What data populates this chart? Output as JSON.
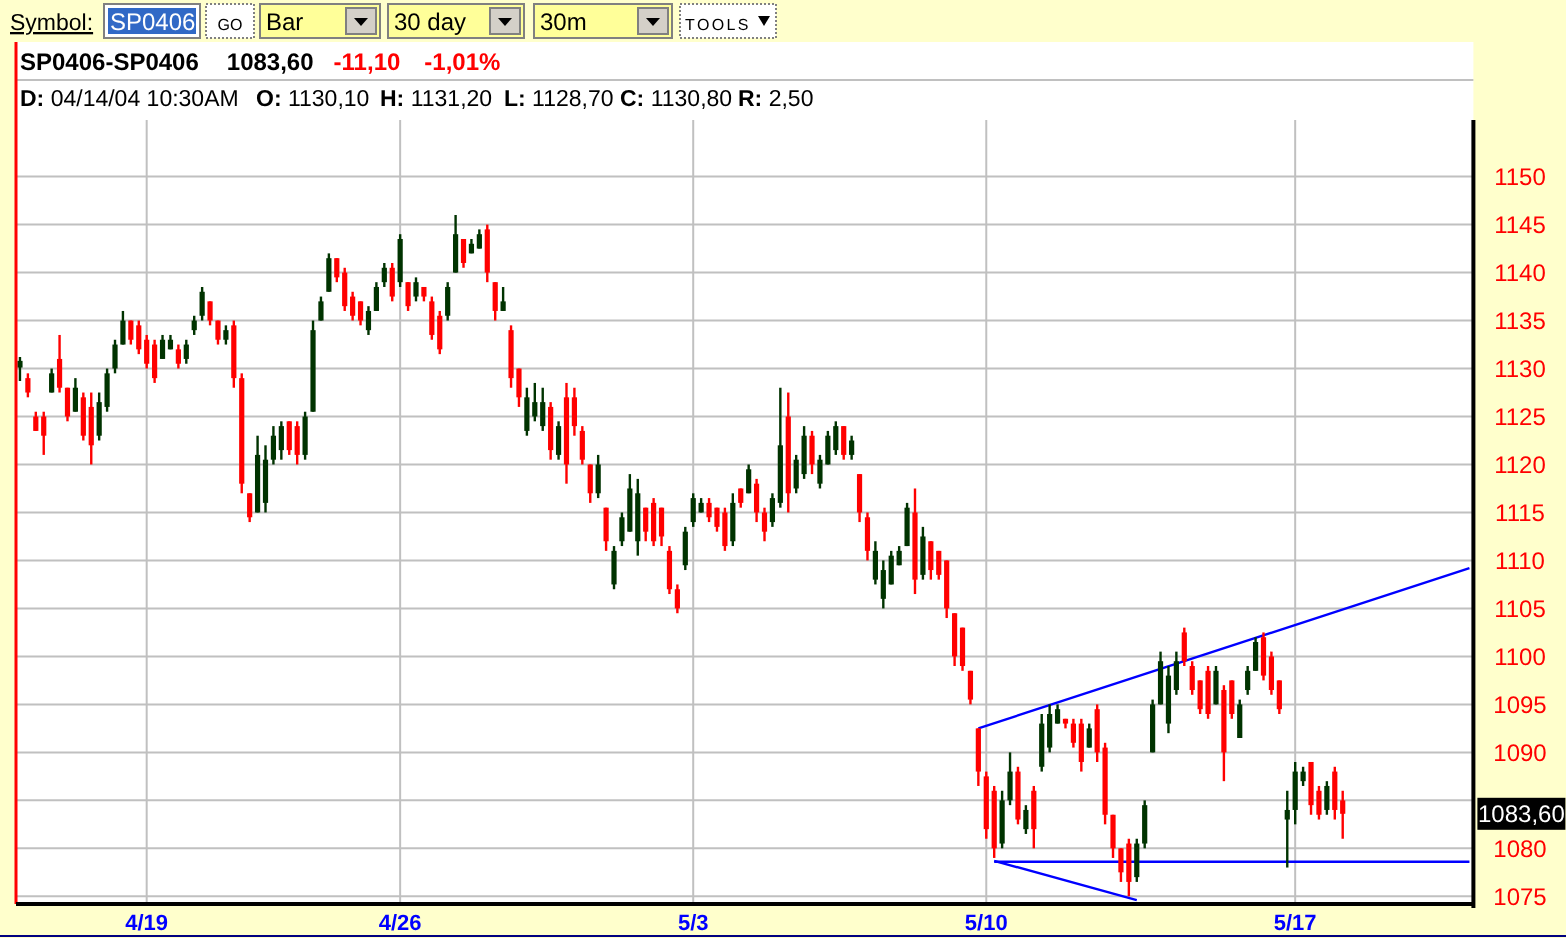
{
  "chart_data": {
    "type": "candlestick",
    "title": "SP0406-SP0406",
    "annotations": [
      "Symbol:",
      "SP0406",
      "GO",
      "Bar",
      "30 day",
      "30m",
      "TOOLS",
      "1083,60",
      "-11,10",
      "-1,01%",
      "D: 04/14/04 10:30AM",
      "O: 1130,10",
      "H: 1131,20",
      "L: 1128,70",
      "C: 1130,80",
      "R: 2,50",
      {
        "text": "1083,60",
        "y": 1083.6
      }
    ],
    "categories": [
      null,
      null,
      null,
      null,
      null,
      null,
      null,
      null,
      null,
      null,
      null,
      null,
      null,
      null,
      null,
      null,
      "4/19",
      null,
      null,
      null,
      null,
      null,
      null,
      null,
      null,
      null,
      null,
      null,
      null,
      null,
      null,
      null,
      null,
      null,
      null,
      null,
      null,
      null,
      null,
      null,
      null,
      null,
      null,
      null,
      null,
      null,
      null,
      null,
      "4/26",
      null,
      null,
      null,
      null,
      null,
      null,
      null,
      null,
      null,
      null,
      null,
      null,
      null,
      null,
      null,
      null,
      null,
      null,
      null,
      null,
      null,
      null,
      null,
      null,
      null,
      null,
      null,
      null,
      null,
      null,
      null,
      null,
      null,
      null,
      null,
      null,
      "5/3",
      null,
      null,
      null,
      null,
      null,
      null,
      null,
      null,
      null,
      null,
      null,
      null,
      null,
      null,
      null,
      null,
      null,
      null,
      null,
      null,
      null,
      null,
      null,
      null,
      null,
      null,
      null,
      null,
      null,
      null,
      null,
      null,
      null,
      null,
      null,
      null,
      "5/10",
      null,
      null,
      null,
      null,
      null,
      null,
      null,
      null,
      null,
      null,
      null,
      null,
      null,
      null,
      null,
      null,
      null,
      null,
      null,
      null,
      null,
      null,
      null,
      null,
      null,
      null,
      null,
      null,
      null,
      null,
      null,
      null,
      null,
      null,
      null,
      null,
      null,
      null,
      "5/17",
      null,
      null,
      null,
      null,
      null,
      null,
      null,
      null,
      null,
      null,
      null,
      null,
      null,
      null,
      null,
      null,
      null,
      null,
      null,
      null,
      null,
      null
    ],
    "ylim": [
      1074.2,
      1155.9
    ],
    "yticks": [
      1075,
      1080,
      {
        "value": 1085,
        "label": null
      },
      1090,
      1095,
      1100,
      1105,
      1110,
      1115,
      1120,
      1125,
      1130,
      1135,
      1140,
      1145,
      1150
    ],
    "grid": true,
    "ohlc": [
      [
        1130.1,
        1131.2,
        1128.7,
        1130.8
      ],
      [
        1129,
        1129.5,
        1127,
        1127.5
      ],
      [
        1125,
        1125.5,
        1123.5,
        1123.5
      ],
      [
        1125,
        1125.5,
        1121,
        1123
      ],
      [
        1127.5,
        1130,
        1127.5,
        1129.5
      ],
      [
        1131,
        1133.5,
        1127.5,
        1128
      ],
      [
        1128,
        1128,
        1124.5,
        1125
      ],
      [
        1125.5,
        1129,
        1125.5,
        1128
      ],
      [
        1127,
        1127.5,
        1122.5,
        1123
      ],
      [
        1126,
        1127.5,
        1120,
        1122
      ],
      [
        1123,
        1127.5,
        1122.5,
        1126.5
      ],
      [
        1126,
        1130,
        1125.5,
        1129.5
      ],
      [
        1130,
        1133,
        1129.5,
        1132.5
      ],
      [
        1132.5,
        1136,
        1132.5,
        1135
      ],
      [
        1135,
        1135,
        1132.5,
        1133
      ],
      [
        1134.5,
        1135,
        1131.5,
        1132
      ],
      [
        1133,
        1133.5,
        1130,
        1130.5
      ],
      [
        1132.5,
        1133,
        1128.5,
        1129
      ],
      [
        1131,
        1133.5,
        1131,
        1133
      ],
      [
        1132,
        1133.5,
        1132,
        1133
      ],
      [
        1132,
        1132.5,
        1130,
        1130.5
      ],
      [
        1131,
        1133,
        1130.5,
        1132.5
      ],
      [
        1134,
        1135.5,
        1133.5,
        1135
      ],
      [
        1135.5,
        1138.5,
        1135,
        1138
      ],
      [
        1137,
        1137,
        1134.5,
        1135
      ],
      [
        1135,
        1135,
        1132.5,
        1133
      ],
      [
        1133,
        1134.5,
        1132.5,
        1134
      ],
      [
        1134.5,
        1135,
        1128,
        1129
      ],
      [
        1129,
        1129.5,
        1117,
        1118
      ],
      [
        1117,
        1117,
        1114,
        1114.5
      ],
      [
        1115,
        1123,
        1115,
        1121
      ],
      [
        1116,
        1122,
        1115,
        1120.5
      ],
      [
        1120.5,
        1124,
        1120,
        1123
      ],
      [
        1121.5,
        1124.5,
        1120.5,
        1124
      ],
      [
        1124.5,
        1124.5,
        1121,
        1121.5
      ],
      [
        1124,
        1124.5,
        1120,
        1121
      ],
      [
        1121,
        1125.5,
        1120.5,
        1125
      ],
      [
        1125.5,
        1135,
        1125.5,
        1134
      ],
      [
        1135,
        1137.5,
        1135,
        1137
      ],
      [
        1138,
        1142,
        1138,
        1141.5
      ],
      [
        1141.5,
        1141.5,
        1139,
        1139.5
      ],
      [
        1140,
        1140.5,
        1136,
        1136.5
      ],
      [
        1137.5,
        1138,
        1135,
        1135.5
      ],
      [
        1137,
        1137,
        1134.5,
        1135
      ],
      [
        1134,
        1136.5,
        1133.5,
        1136
      ],
      [
        1136,
        1139,
        1136,
        1138.5
      ],
      [
        1139,
        1141,
        1138.5,
        1140.5
      ],
      [
        1140.5,
        1141,
        1137,
        1137.5
      ],
      [
        1139,
        1144,
        1138.5,
        1143.5
      ],
      [
        1139,
        1139,
        1136,
        1136.5
      ],
      [
        1137.5,
        1139.5,
        1137,
        1139
      ],
      [
        1138.5,
        1138.5,
        1137,
        1137.5
      ],
      [
        1137,
        1137.5,
        1133,
        1133.5
      ],
      [
        1135.5,
        1136,
        1131.5,
        1132
      ],
      [
        1135.5,
        1139,
        1135,
        1138.5
      ],
      [
        1140,
        1146,
        1140,
        1144
      ],
      [
        1143.5,
        1143.5,
        1140.5,
        1141
      ],
      [
        1142,
        1143.5,
        1142,
        1143
      ],
      [
        1142.5,
        1144.5,
        1142.5,
        1144
      ],
      [
        1144.5,
        1145,
        1139,
        1140
      ],
      [
        1139,
        1139,
        1135,
        1136
      ],
      [
        1136,
        1138.5,
        1136,
        1137
      ],
      [
        1134,
        1134.5,
        1128,
        1129
      ],
      [
        1130,
        1130,
        1126,
        1127
      ],
      [
        1123.5,
        1128,
        1123,
        1127
      ],
      [
        1125,
        1128.5,
        1124.5,
        1126.5
      ],
      [
        1124,
        1128,
        1123.5,
        1126.5
      ],
      [
        1126,
        1126.5,
        1120.5,
        1121.5
      ],
      [
        1121,
        1124.5,
        1120.5,
        1124
      ],
      [
        1127,
        1128.5,
        1118,
        1120
      ],
      [
        1127,
        1128,
        1123,
        1124
      ],
      [
        1123.5,
        1124,
        1120,
        1120.5
      ],
      [
        1120,
        1120,
        1116,
        1117
      ],
      [
        1117,
        1121,
        1116.5,
        1120
      ],
      [
        1115.5,
        1115.5,
        1111,
        1112
      ],
      [
        1107.5,
        1111.5,
        1107,
        1111
      ],
      [
        1112,
        1115,
        1111.5,
        1114.5
      ],
      [
        1113,
        1119,
        1113,
        1117.5
      ],
      [
        1112,
        1118.5,
        1110.5,
        1117
      ],
      [
        1115.5,
        1115.5,
        1112,
        1113
      ],
      [
        1116,
        1116.5,
        1111.5,
        1112
      ],
      [
        1115.5,
        1115.5,
        1111.5,
        1112.5
      ],
      [
        1111,
        1111.5,
        1106.5,
        1107
      ],
      [
        1107,
        1107.5,
        1104.5,
        1105
      ],
      [
        1109.5,
        1113.5,
        1109,
        1113
      ],
      [
        1114,
        1117,
        1113.5,
        1116.5
      ],
      [
        1115,
        1116.5,
        1115,
        1116
      ],
      [
        1116,
        1116.5,
        1114,
        1114.5
      ],
      [
        1115.5,
        1115.5,
        1113,
        1113.5
      ],
      [
        1115,
        1115.5,
        1111,
        1111.5
      ],
      [
        1112,
        1117,
        1111.5,
        1116
      ],
      [
        1117.5,
        1117.5,
        1115.5,
        1116
      ],
      [
        1117,
        1120,
        1117,
        1119.5
      ],
      [
        1118,
        1118.5,
        1114,
        1115
      ],
      [
        1115,
        1115.5,
        1112,
        1113
      ],
      [
        1114,
        1117,
        1113.5,
        1116.5
      ],
      [
        1116,
        1128,
        1115.5,
        1122
      ],
      [
        1125,
        1127.5,
        1115,
        1117
      ],
      [
        1117.5,
        1121,
        1117,
        1120.5
      ],
      [
        1119,
        1124,
        1118.5,
        1123
      ],
      [
        1123,
        1123.5,
        1119,
        1120
      ],
      [
        1118,
        1121,
        1117.5,
        1120.5
      ],
      [
        1120,
        1123.5,
        1120,
        1123
      ],
      [
        1121.5,
        1124.5,
        1121,
        1124
      ],
      [
        1124,
        1124,
        1120.5,
        1121
      ],
      [
        1121,
        1123,
        1120.5,
        1122.5
      ],
      [
        1119,
        1119,
        1114,
        1115
      ],
      [
        1114.5,
        1115,
        1110,
        1111
      ],
      [
        1108,
        1112,
        1107.5,
        1111
      ],
      [
        1106,
        1110,
        1105,
        1109
      ],
      [
        1107.5,
        1111,
        1107.5,
        1110.5
      ],
      [
        1109.5,
        1111.5,
        1109.5,
        1111
      ],
      [
        1111.5,
        1116,
        1111.5,
        1115.5
      ],
      [
        1115,
        1117.5,
        1106.5,
        1108
      ],
      [
        1108.5,
        1113.5,
        1108,
        1112.5
      ],
      [
        1112,
        1112,
        1108,
        1109
      ],
      [
        1111,
        1111,
        1108,
        1108.5
      ],
      [
        1110,
        1110,
        1104,
        1105
      ],
      [
        1104.5,
        1104.5,
        1099,
        1100
      ],
      [
        1103,
        1103,
        1098.5,
        1099
      ],
      [
        1098.5,
        1098.5,
        1095,
        1095.5
      ],
      [
        1092.5,
        1092.5,
        1086.5,
        1088
      ],
      [
        1087.5,
        1088,
        1081,
        1082
      ],
      [
        1086,
        1086.5,
        1079,
        1080
      ],
      [
        1080.5,
        1086,
        1080,
        1085
      ],
      [
        1085,
        1090,
        1084.5,
        1088
      ],
      [
        1088,
        1088.5,
        1082.5,
        1083
      ],
      [
        1082,
        1084.5,
        1081.5,
        1084
      ],
      [
        1086,
        1086.5,
        1080,
        1082
      ],
      [
        1088.5,
        1094,
        1088,
        1093
      ],
      [
        1090.5,
        1095,
        1090,
        1094
      ],
      [
        1093,
        1095,
        1093,
        1094.5
      ],
      [
        1093.5,
        1093.5,
        1092.5,
        1093
      ],
      [
        1093,
        1093.5,
        1090.5,
        1091
      ],
      [
        1093,
        1093.5,
        1088,
        1089
      ],
      [
        1090.5,
        1093,
        1090.5,
        1092.5
      ],
      [
        1094.5,
        1095,
        1089,
        1090
      ],
      [
        1090.5,
        1091,
        1082.5,
        1083.5
      ],
      [
        1083.5,
        1083.5,
        1079,
        1080
      ],
      [
        1080,
        1080,
        1076.5,
        1077.5
      ],
      [
        1080.5,
        1081,
        1075,
        1076.5
      ],
      [
        1077,
        1081,
        1076.5,
        1080.5
      ],
      [
        1080.5,
        1085,
        1080,
        1084.5
      ],
      [
        1090,
        1095.5,
        1090,
        1095
      ],
      [
        1095,
        1100.5,
        1095,
        1099.5
      ],
      [
        1093,
        1099,
        1092,
        1098
      ],
      [
        1096.5,
        1100.5,
        1096,
        1099.5
      ],
      [
        1102.5,
        1103,
        1099,
        1099.5
      ],
      [
        1099,
        1099.5,
        1096,
        1096.5
      ],
      [
        1097.5,
        1097.5,
        1094,
        1094.5
      ],
      [
        1098.5,
        1099,
        1093.5,
        1094
      ],
      [
        1095,
        1099,
        1095,
        1098.5
      ],
      [
        1096.5,
        1097,
        1087,
        1090
      ],
      [
        1097.5,
        1097.5,
        1093.5,
        1094
      ],
      [
        1091.5,
        1095.5,
        1091.5,
        1095
      ],
      [
        1096.5,
        1099,
        1096,
        1098.5
      ],
      [
        1098.5,
        1102,
        1098.5,
        1101.5
      ],
      [
        1102,
        1102.5,
        1097.5,
        1098
      ],
      [
        1100,
        1100.5,
        1096,
        1096.5
      ],
      [
        1097.5,
        1097.5,
        1094,
        1094.5
      ],
      [
        1083,
        1086,
        1078,
        1084
      ],
      [
        1084,
        1089,
        1082.5,
        1088
      ],
      [
        1087,
        1088.5,
        1086.5,
        1088
      ],
      [
        1089,
        1089,
        1083.5,
        1084.5
      ],
      [
        1086,
        1086.5,
        1083,
        1083.5
      ],
      [
        1084,
        1087,
        1083.5,
        1086.5
      ],
      [
        1088,
        1088.5,
        1083,
        1084
      ],
      [
        1085,
        1086,
        1081,
        1083.6
      ],
      null,
      null,
      null,
      null,
      null,
      null,
      null,
      null,
      null,
      null,
      null,
      null,
      null,
      null,
      null,
      null
    ],
    "colors": [
      "#003300",
      "#ff0000",
      "#ff0000",
      "#ff0000",
      "#003300",
      "#ff0000",
      "#ff0000",
      "#003300",
      "#ff0000",
      "#ff0000",
      "#003300",
      "#003300",
      "#003300",
      "#003300",
      "#ff0000",
      "#ff0000",
      "#ff0000",
      "#ff0000",
      "#003300",
      "#003300",
      "#ff0000",
      "#003300",
      "#003300",
      "#003300",
      "#ff0000",
      "#ff0000",
      "#003300",
      "#ff0000",
      "#ff0000",
      "#ff0000",
      "#003300",
      "#003300",
      "#003300",
      "#003300",
      "#ff0000",
      "#ff0000",
      "#003300",
      "#003300",
      "#003300",
      "#003300",
      "#ff0000",
      "#ff0000",
      "#ff0000",
      "#ff0000",
      "#003300",
      "#003300",
      "#003300",
      "#ff0000",
      "#003300",
      "#ff0000",
      "#003300",
      "#ff0000",
      "#ff0000",
      "#ff0000",
      "#003300",
      "#003300",
      "#ff0000",
      "#003300",
      "#003300",
      "#ff0000",
      "#ff0000",
      "#003300",
      "#ff0000",
      "#ff0000",
      "#003300",
      "#003300",
      "#003300",
      "#ff0000",
      "#003300",
      "#ff0000",
      "#ff0000",
      "#ff0000",
      "#ff0000",
      "#003300",
      "#ff0000",
      "#003300",
      "#003300",
      "#003300",
      "#003300",
      "#ff0000",
      "#ff0000",
      "#ff0000",
      "#ff0000",
      "#ff0000",
      "#003300",
      "#003300",
      "#003300",
      "#ff0000",
      "#ff0000",
      "#ff0000",
      "#003300",
      "#ff0000",
      "#003300",
      "#ff0000",
      "#ff0000",
      "#003300",
      "#003300",
      "#ff0000",
      "#003300",
      "#003300",
      "#ff0000",
      "#003300",
      "#003300",
      "#003300",
      "#ff0000",
      "#003300",
      "#ff0000",
      "#ff0000",
      "#003300",
      "#003300",
      "#003300",
      "#003300",
      "#003300",
      "#ff0000",
      "#003300",
      "#ff0000",
      "#ff0000",
      "#ff0000",
      "#ff0000",
      "#ff0000",
      "#ff0000",
      "#ff0000",
      "#ff0000",
      "#ff0000",
      "#003300",
      "#003300",
      "#ff0000",
      "#003300",
      "#ff0000",
      "#003300",
      "#003300",
      "#003300",
      "#ff0000",
      "#ff0000",
      "#ff0000",
      "#003300",
      "#ff0000",
      "#ff0000",
      "#ff0000",
      "#ff0000",
      "#ff0000",
      "#003300",
      "#003300",
      "#003300",
      "#003300",
      "#003300",
      "#003300",
      "#ff0000",
      "#ff0000",
      "#ff0000",
      "#ff0000",
      "#003300",
      "#ff0000",
      "#ff0000",
      "#003300",
      "#003300",
      "#003300",
      "#ff0000",
      "#ff0000",
      "#ff0000",
      "#003300",
      "#003300",
      "#003300",
      "#ff0000",
      "#ff0000",
      "#003300",
      "#ff0000",
      "#ff0000",
      null,
      null,
      null,
      null,
      null,
      null,
      null,
      null,
      null,
      null,
      null,
      null,
      null,
      null,
      null,
      null
    ],
    "series": [
      {
        "type": "line",
        "color": "#0000ff",
        "values": [
          null,
          null,
          null,
          null,
          null,
          null,
          null,
          null,
          null,
          null,
          null,
          null,
          null,
          null,
          null,
          null,
          null,
          null,
          null,
          null,
          null,
          null,
          null,
          null,
          null,
          null,
          null,
          null,
          null,
          null,
          null,
          null,
          null,
          null,
          null,
          null,
          null,
          null,
          null,
          null,
          null,
          null,
          null,
          null,
          null,
          null,
          null,
          null,
          null,
          null,
          null,
          null,
          null,
          null,
          null,
          null,
          null,
          null,
          null,
          null,
          null,
          null,
          null,
          null,
          null,
          null,
          null,
          null,
          null,
          null,
          null,
          null,
          null,
          null,
          null,
          null,
          null,
          null,
          null,
          null,
          null,
          null,
          null,
          null,
          null,
          null,
          null,
          null,
          null,
          null,
          null,
          null,
          null,
          null,
          null,
          null,
          null,
          null,
          null,
          null,
          null,
          null,
          null,
          null,
          null,
          null,
          null,
          null,
          null,
          null,
          null,
          null,
          null,
          null,
          null,
          null,
          null,
          null,
          null,
          null,
          null,
          1092.5,
          null,
          null,
          null,
          null,
          null,
          null,
          null,
          null,
          null,
          null,
          null,
          null,
          null,
          null,
          null,
          null,
          null,
          null,
          null,
          null,
          null,
          null,
          null,
          null,
          null,
          null,
          null,
          null,
          null,
          null,
          null,
          null,
          null,
          null,
          null,
          null,
          null,
          null,
          null,
          null,
          null,
          null,
          null,
          null,
          null,
          null,
          null,
          null,
          null,
          null,
          null,
          null,
          null,
          null,
          null,
          null,
          null,
          null,
          null,
          null,
          null,
          1109.2
        ]
      },
      {
        "type": "line",
        "color": "#0000ff",
        "values": [
          null,
          null,
          null,
          null,
          null,
          null,
          null,
          null,
          null,
          null,
          null,
          null,
          null,
          null,
          null,
          null,
          null,
          null,
          null,
          null,
          null,
          null,
          null,
          null,
          null,
          null,
          null,
          null,
          null,
          null,
          null,
          null,
          null,
          null,
          null,
          null,
          null,
          null,
          null,
          null,
          null,
          null,
          null,
          null,
          null,
          null,
          null,
          null,
          null,
          null,
          null,
          null,
          null,
          null,
          null,
          null,
          null,
          null,
          null,
          null,
          null,
          null,
          null,
          null,
          null,
          null,
          null,
          null,
          null,
          null,
          null,
          null,
          null,
          null,
          null,
          null,
          null,
          null,
          null,
          null,
          null,
          null,
          null,
          null,
          null,
          null,
          null,
          null,
          null,
          null,
          null,
          null,
          null,
          null,
          null,
          null,
          null,
          null,
          null,
          null,
          null,
          null,
          null,
          null,
          null,
          null,
          null,
          null,
          null,
          null,
          null,
          null,
          null,
          null,
          null,
          null,
          null,
          null,
          null,
          null,
          null,
          null,
          null,
          1078.7,
          null,
          null,
          null,
          null,
          null,
          null,
          null,
          null,
          null,
          null,
          null,
          null,
          null,
          null,
          null,
          null,
          null,
          1074.6,
          null,
          null,
          null,
          null,
          null,
          null,
          null,
          null,
          null,
          null,
          null,
          null,
          null,
          null,
          null,
          null,
          null,
          null,
          null,
          null,
          null,
          null,
          null,
          null,
          null,
          null,
          null,
          null,
          null,
          null,
          null,
          null,
          null,
          null,
          null,
          null,
          null,
          null,
          null,
          null,
          null,
          null
        ]
      },
      {
        "type": "line",
        "color": "#0000ff",
        "values": [
          null,
          null,
          null,
          null,
          null,
          null,
          null,
          null,
          null,
          null,
          null,
          null,
          null,
          null,
          null,
          null,
          null,
          null,
          null,
          null,
          null,
          null,
          null,
          null,
          null,
          null,
          null,
          null,
          null,
          null,
          null,
          null,
          null,
          null,
          null,
          null,
          null,
          null,
          null,
          null,
          null,
          null,
          null,
          null,
          null,
          null,
          null,
          null,
          null,
          null,
          null,
          null,
          null,
          null,
          null,
          null,
          null,
          null,
          null,
          null,
          null,
          null,
          null,
          null,
          null,
          null,
          null,
          null,
          null,
          null,
          null,
          null,
          null,
          null,
          null,
          null,
          null,
          null,
          null,
          null,
          null,
          null,
          null,
          null,
          null,
          null,
          null,
          null,
          null,
          null,
          null,
          null,
          null,
          null,
          null,
          null,
          null,
          null,
          null,
          null,
          null,
          null,
          null,
          null,
          null,
          null,
          null,
          null,
          null,
          null,
          null,
          null,
          null,
          null,
          null,
          null,
          null,
          null,
          null,
          null,
          null,
          null,
          null,
          1078.6,
          null,
          null,
          null,
          null,
          null,
          null,
          null,
          null,
          null,
          null,
          null,
          null,
          null,
          null,
          null,
          null,
          null,
          null,
          null,
          null,
          null,
          null,
          null,
          null,
          null,
          null,
          null,
          null,
          null,
          null,
          null,
          null,
          null,
          null,
          null,
          null,
          null,
          null,
          null,
          null,
          null,
          null,
          null,
          null,
          null,
          null,
          null,
          null,
          null,
          null,
          null,
          null,
          null,
          null,
          null,
          null,
          null,
          null,
          null,
          1078.6
        ]
      }
    ]
  }
}
